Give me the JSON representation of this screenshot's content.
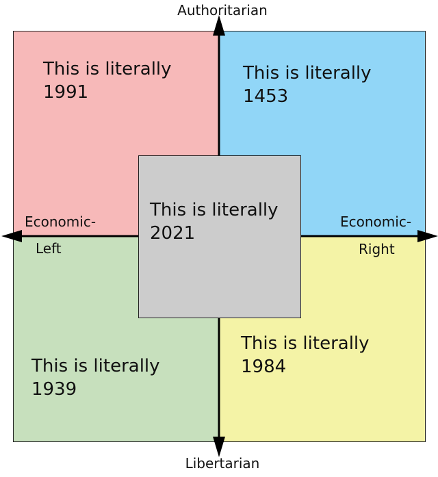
{
  "colors": {
    "auth_left": "#f7b9b9",
    "auth_right": "#91d6f7",
    "lib_left": "#c7e0bd",
    "lib_right": "#f4f3a6",
    "center": "#cccccc",
    "axis": "#000000"
  },
  "axes": {
    "top": "Authoritarian",
    "bottom": "Libertarian",
    "left_line1": "Economic-",
    "left_line2": "Left",
    "right_line1": "Economic-",
    "right_line2": "Right"
  },
  "quadrants": {
    "auth_left": {
      "line1": "This is literally",
      "line2": "1991"
    },
    "auth_right": {
      "line1": "This is literally",
      "line2": "1453"
    },
    "lib_left": {
      "line1": "This is literally",
      "line2": "1939"
    },
    "lib_right": {
      "line1": "This is literally",
      "line2": "1984"
    },
    "center": {
      "line1": "This is literally",
      "line2": "2021"
    }
  }
}
